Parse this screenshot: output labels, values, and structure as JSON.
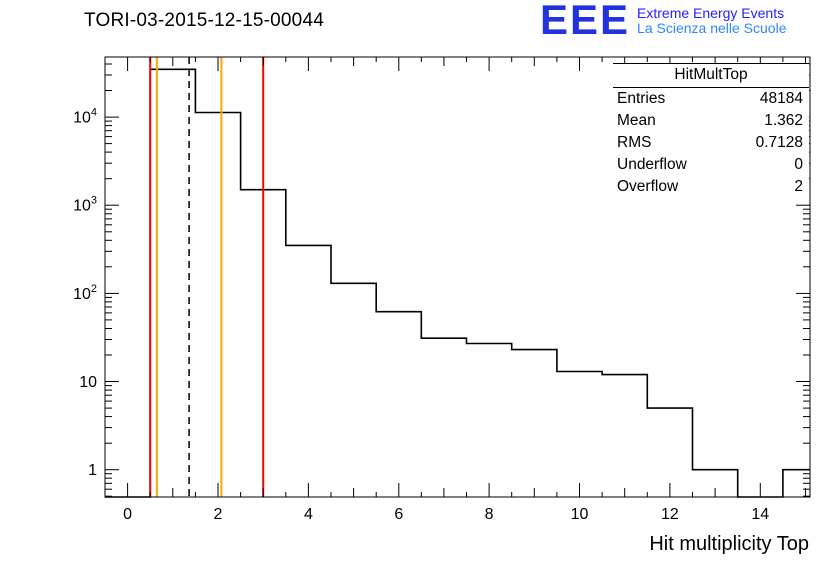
{
  "header": {
    "title": "TORI-03-2015-12-15-00044",
    "logo": {
      "letters": "EEE",
      "line1": "Extreme Energy Events",
      "line2": "La Scienza nelle Scuole"
    }
  },
  "stats_box": {
    "title": "HitMultTop",
    "rows": [
      {
        "label": "Entries",
        "value": "48184"
      },
      {
        "label": "Mean",
        "value": "1.362"
      },
      {
        "label": "RMS",
        "value": "0.7128"
      },
      {
        "label": "Underflow",
        "value": "0"
      },
      {
        "label": "Overflow",
        "value": "2"
      }
    ]
  },
  "chart_data": {
    "type": "bar",
    "subtype": "step-histogram",
    "title": "TORI-03-2015-12-15-00044",
    "xlabel": "Hit multiplicity Top",
    "ylabel": "",
    "y_scale": "log",
    "grid": false,
    "x_range": [
      -0.5,
      15.1
    ],
    "y_range": [
      0.49,
      48000
    ],
    "bin_width": 1,
    "bin_centers": [
      1,
      2,
      3,
      4,
      5,
      6,
      7,
      8,
      9,
      10,
      11,
      12,
      13,
      14,
      15
    ],
    "counts": [
      34800,
      11250,
      1500,
      350,
      130,
      62,
      31,
      27,
      23,
      13,
      12,
      5,
      1,
      0,
      1
    ],
    "x_major_ticks": [
      0,
      2,
      4,
      6,
      8,
      10,
      12,
      14
    ],
    "x_tick_labels": [
      "0",
      "2",
      "4",
      "6",
      "8",
      "10",
      "12",
      "14"
    ],
    "y_major_ticks": [
      1,
      10,
      100,
      1000,
      10000
    ],
    "y_tick_labels": [
      "1",
      "10",
      "10^2",
      "10^3",
      "10^4"
    ],
    "line_color": "#000000",
    "reference_lines": [
      {
        "x": 0.5,
        "color": "#ff0000",
        "style": "solid",
        "name": "threshold-low"
      },
      {
        "x": 0.649,
        "color": "#ffa800",
        "style": "solid",
        "name": "mean-minus-rms"
      },
      {
        "x": 1.362,
        "color": "#000000",
        "style": "dashed",
        "name": "mean"
      },
      {
        "x": 2.075,
        "color": "#ffa800",
        "style": "solid",
        "name": "mean-plus-rms"
      },
      {
        "x": 3.0,
        "color": "#ff0000",
        "style": "solid",
        "name": "threshold-high"
      }
    ]
  },
  "colors": {
    "frame": "#000000",
    "histogram_line": "#000000",
    "threshold_line": "#ff0000",
    "rms_line": "#ffa800",
    "mean_line": "#000000",
    "logo_letters": "#2233dd",
    "logo_text_line1": "#2222ff",
    "logo_text_line2": "#2e86ff",
    "background": "#ffffff"
  }
}
